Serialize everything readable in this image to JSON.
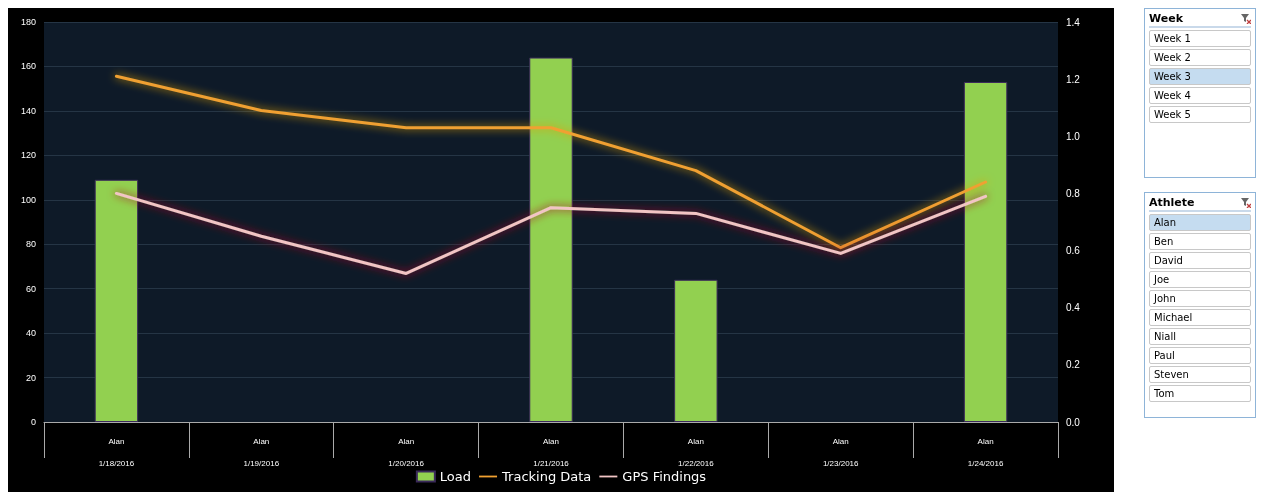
{
  "chart_data": [
    {
      "type": "bar",
      "categories": [
        "Alan\n1/18/2016",
        "Alan\n1/19/2016",
        "Alan\n1/20/2016",
        "Alan\n1/21/2016",
        "Alan\n1/22/2016",
        "Alan\n1/23/2016",
        "Alan\n1/24/2016"
      ],
      "series": [
        {
          "name": "Load",
          "type": "bar",
          "color": "#92d050",
          "values": [
            109,
            null,
            null,
            164,
            64,
            null,
            153
          ]
        },
        {
          "name": "Tracking Data",
          "type": "line",
          "axis": "y2",
          "color": "#f0a030",
          "values": [
            1.21,
            1.09,
            1.03,
            1.03,
            0.88,
            0.61,
            0.84
          ]
        },
        {
          "name": "GPS Findings",
          "type": "line",
          "axis": "y2",
          "color": "#f2c4c4",
          "values": [
            0.8,
            0.65,
            0.52,
            0.75,
            0.73,
            0.59,
            0.79
          ]
        }
      ],
      "ylim": [
        0,
        180
      ],
      "yticks": [
        0,
        20,
        40,
        60,
        80,
        100,
        120,
        140,
        160,
        180
      ],
      "y2lim": [
        0,
        1.4
      ],
      "y2ticks": [
        {
          "value": 0,
          "label": "0.0"
        },
        {
          "value": 0.2,
          "label": "0.2"
        },
        {
          "value": 0.4,
          "label": "0.4"
        },
        {
          "value": 0.6,
          "label": "0.6"
        },
        {
          "value": 0.8,
          "label": "0.8"
        },
        {
          "value": 1,
          "label": "1.0"
        },
        {
          "value": 1.2,
          "label": "1.2"
        },
        {
          "value": 1.4,
          "label": "1.4"
        }
      ],
      "grid": "y",
      "legend": "bottom",
      "marker": "none",
      "line_style": "solid"
    },
    {
      "type": "other",
      "title": "Week",
      "categories": [
        "Week 1",
        "Week 2",
        "Week 3",
        "Week 4",
        "Week 5"
      ],
      "colors": [
        "#ffffff",
        "#ffffff",
        "#c5dcf0",
        "#ffffff",
        "#ffffff"
      ]
    },
    {
      "type": "other",
      "title": "Athlete",
      "categories": [
        "Alan",
        "Ben",
        "David",
        "Joe",
        "John",
        "Michael",
        "Niall",
        "Paul",
        "Steven",
        "Tom"
      ],
      "colors": [
        "#c5dcf0",
        "#ffffff",
        "#ffffff",
        "#ffffff",
        "#ffffff",
        "#ffffff",
        "#ffffff",
        "#ffffff",
        "#ffffff",
        "#ffffff"
      ]
    }
  ]
}
